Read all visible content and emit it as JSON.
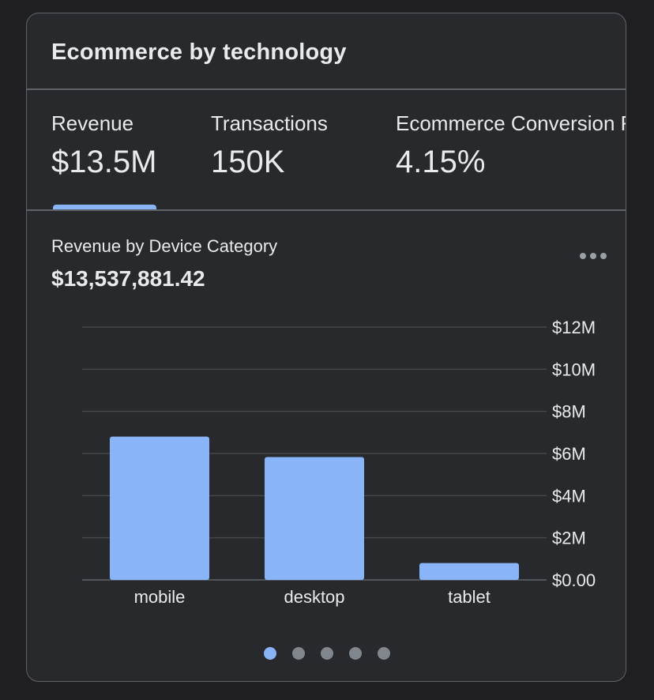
{
  "card": {
    "title": "Ecommerce by technology"
  },
  "tabs": [
    {
      "label": "Revenue",
      "value": "$13.5M",
      "selected": true
    },
    {
      "label": "Transactions",
      "value": "150K",
      "selected": false
    },
    {
      "label": "Ecommerce Conversion Rate",
      "value": "4.15%",
      "selected": false
    }
  ],
  "chart_section": {
    "title": "Revenue by Device Category",
    "total": "$13,537,881.42",
    "more_label": "More options"
  },
  "chart_data": {
    "type": "bar",
    "title": "Revenue by Device Category",
    "categories": [
      "mobile",
      "desktop",
      "tablet"
    ],
    "values": [
      6800000,
      5830000,
      800000
    ],
    "xlabel": "",
    "ylabel": "",
    "ylim": [
      0,
      12000000
    ],
    "yticks": [
      0,
      2000000,
      4000000,
      6000000,
      8000000,
      10000000,
      12000000
    ],
    "ytick_labels": [
      "$0.00",
      "$2M",
      "$4M",
      "$6M",
      "$8M",
      "$10M",
      "$12M"
    ],
    "grid": true,
    "axis_side": "right",
    "bar_color": "#8ab4f8"
  },
  "pager": {
    "pages": 5,
    "active": 0
  },
  "colors": {
    "background": "#1f1f22",
    "card": "#28292c",
    "accent": "#8ab4f8",
    "border": "#5f6368",
    "text": "#e8eaed",
    "muted": "#80868b"
  }
}
